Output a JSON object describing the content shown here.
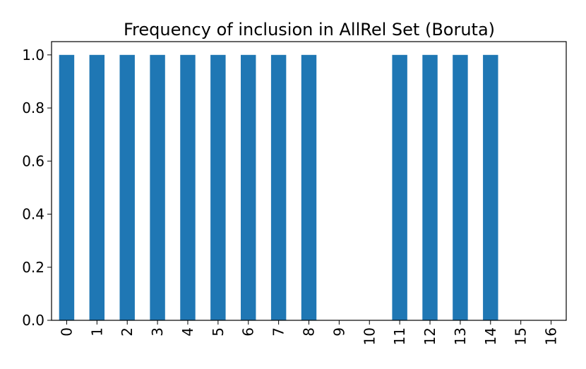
{
  "chart_data": {
    "type": "bar",
    "title": "Frequency of inclusion in AllRel Set (Boruta)",
    "xlabel": "",
    "ylabel": "",
    "categories": [
      "0",
      "1",
      "2",
      "3",
      "4",
      "5",
      "6",
      "7",
      "8",
      "9",
      "10",
      "11",
      "12",
      "13",
      "14",
      "15",
      "16"
    ],
    "values": [
      1.0,
      1.0,
      1.0,
      1.0,
      1.0,
      1.0,
      1.0,
      1.0,
      1.0,
      0.0,
      0.0,
      1.0,
      1.0,
      1.0,
      1.0,
      0.0,
      0.0
    ],
    "ylim": [
      0.0,
      1.05
    ],
    "yticks": [
      "0.0",
      "0.2",
      "0.4",
      "0.6",
      "0.8",
      "1.0"
    ],
    "ytick_values": [
      0.0,
      0.2,
      0.4,
      0.6,
      0.8,
      1.0
    ],
    "grid": false,
    "legend": "none",
    "bar_color": "#1f77b4"
  }
}
